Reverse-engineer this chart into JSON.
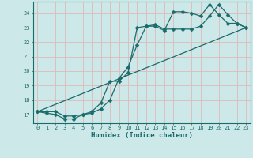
{
  "xlabel": "Humidex (Indice chaleur)",
  "bg_color": "#cce8e8",
  "grid_color": "#e0b8b8",
  "line_color": "#1a6b6b",
  "xlim": [
    -0.5,
    23.5
  ],
  "ylim": [
    16.4,
    24.8
  ],
  "yticks": [
    17,
    18,
    19,
    20,
    21,
    22,
    23,
    24
  ],
  "xticks": [
    0,
    1,
    2,
    3,
    4,
    5,
    6,
    7,
    8,
    9,
    10,
    11,
    12,
    13,
    14,
    15,
    16,
    17,
    18,
    19,
    20,
    21,
    22,
    23
  ],
  "line1_x": [
    0,
    1,
    2,
    3,
    4,
    5,
    6,
    7,
    8,
    9,
    10,
    11,
    12,
    13,
    14,
    15,
    16,
    17,
    18,
    19,
    20,
    21,
    22,
    23
  ],
  "line1_y": [
    17.2,
    17.1,
    17.0,
    16.7,
    16.7,
    17.0,
    17.1,
    17.4,
    18.0,
    19.5,
    20.3,
    21.8,
    23.1,
    23.1,
    22.8,
    24.1,
    24.1,
    24.0,
    23.8,
    24.6,
    23.9,
    23.3,
    23.3,
    23.0
  ],
  "line2_x": [
    0,
    1,
    2,
    3,
    4,
    5,
    6,
    7,
    8,
    9,
    10,
    11,
    12,
    13,
    14,
    15,
    16,
    17,
    18,
    19,
    20,
    21,
    22,
    23
  ],
  "line2_y": [
    17.2,
    17.2,
    17.2,
    16.9,
    16.9,
    17.0,
    17.2,
    17.8,
    19.3,
    19.3,
    19.9,
    23.0,
    23.1,
    23.2,
    22.9,
    22.9,
    22.9,
    22.9,
    23.1,
    23.8,
    24.6,
    23.9,
    23.3,
    23.0
  ],
  "line3_x": [
    0,
    23
  ],
  "line3_y": [
    17.2,
    23.0
  ],
  "marker_size": 2.5,
  "line_width": 0.9
}
